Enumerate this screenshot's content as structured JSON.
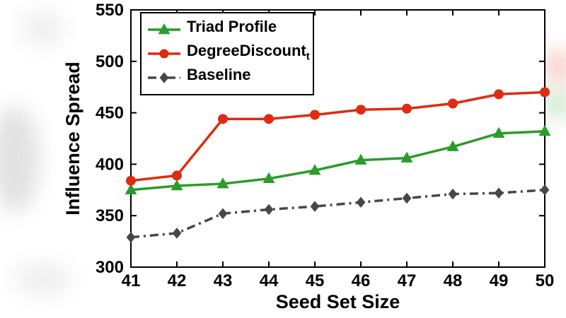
{
  "chart_data": {
    "type": "line",
    "x": [
      41,
      42,
      43,
      44,
      45,
      46,
      47,
      48,
      49,
      50
    ],
    "series": [
      {
        "name": "Triad Profile",
        "sub": "",
        "color": "#2a9c2a",
        "marker": "triangle",
        "line": "solid",
        "values": [
          375,
          379,
          381,
          386,
          394,
          404,
          406,
          417,
          430,
          432
        ]
      },
      {
        "name": "DegreeDiscount",
        "sub": "t",
        "color": "#dd2c12",
        "marker": "circle",
        "line": "solid",
        "values": [
          384,
          389,
          444,
          444,
          448,
          453,
          454,
          459,
          468,
          470
        ]
      },
      {
        "name": "Baseline",
        "sub": "",
        "color": "#474747",
        "marker": "diamond",
        "line": "dashdot",
        "values": [
          329,
          333,
          352,
          356,
          359,
          363,
          367,
          371,
          372,
          375
        ]
      }
    ],
    "title": "",
    "xlabel": "Seed Set Size",
    "ylabel": "Influence Spread",
    "xlim": [
      41,
      50
    ],
    "ylim": [
      300,
      550
    ],
    "xticks": [
      41,
      42,
      43,
      44,
      45,
      46,
      47,
      48,
      49,
      50
    ],
    "yticks": [
      300,
      350,
      400,
      450,
      500,
      550
    ],
    "legend_position": "top-left",
    "grid": false,
    "axis_color": "#000000",
    "plot_background": "#ffffff"
  }
}
